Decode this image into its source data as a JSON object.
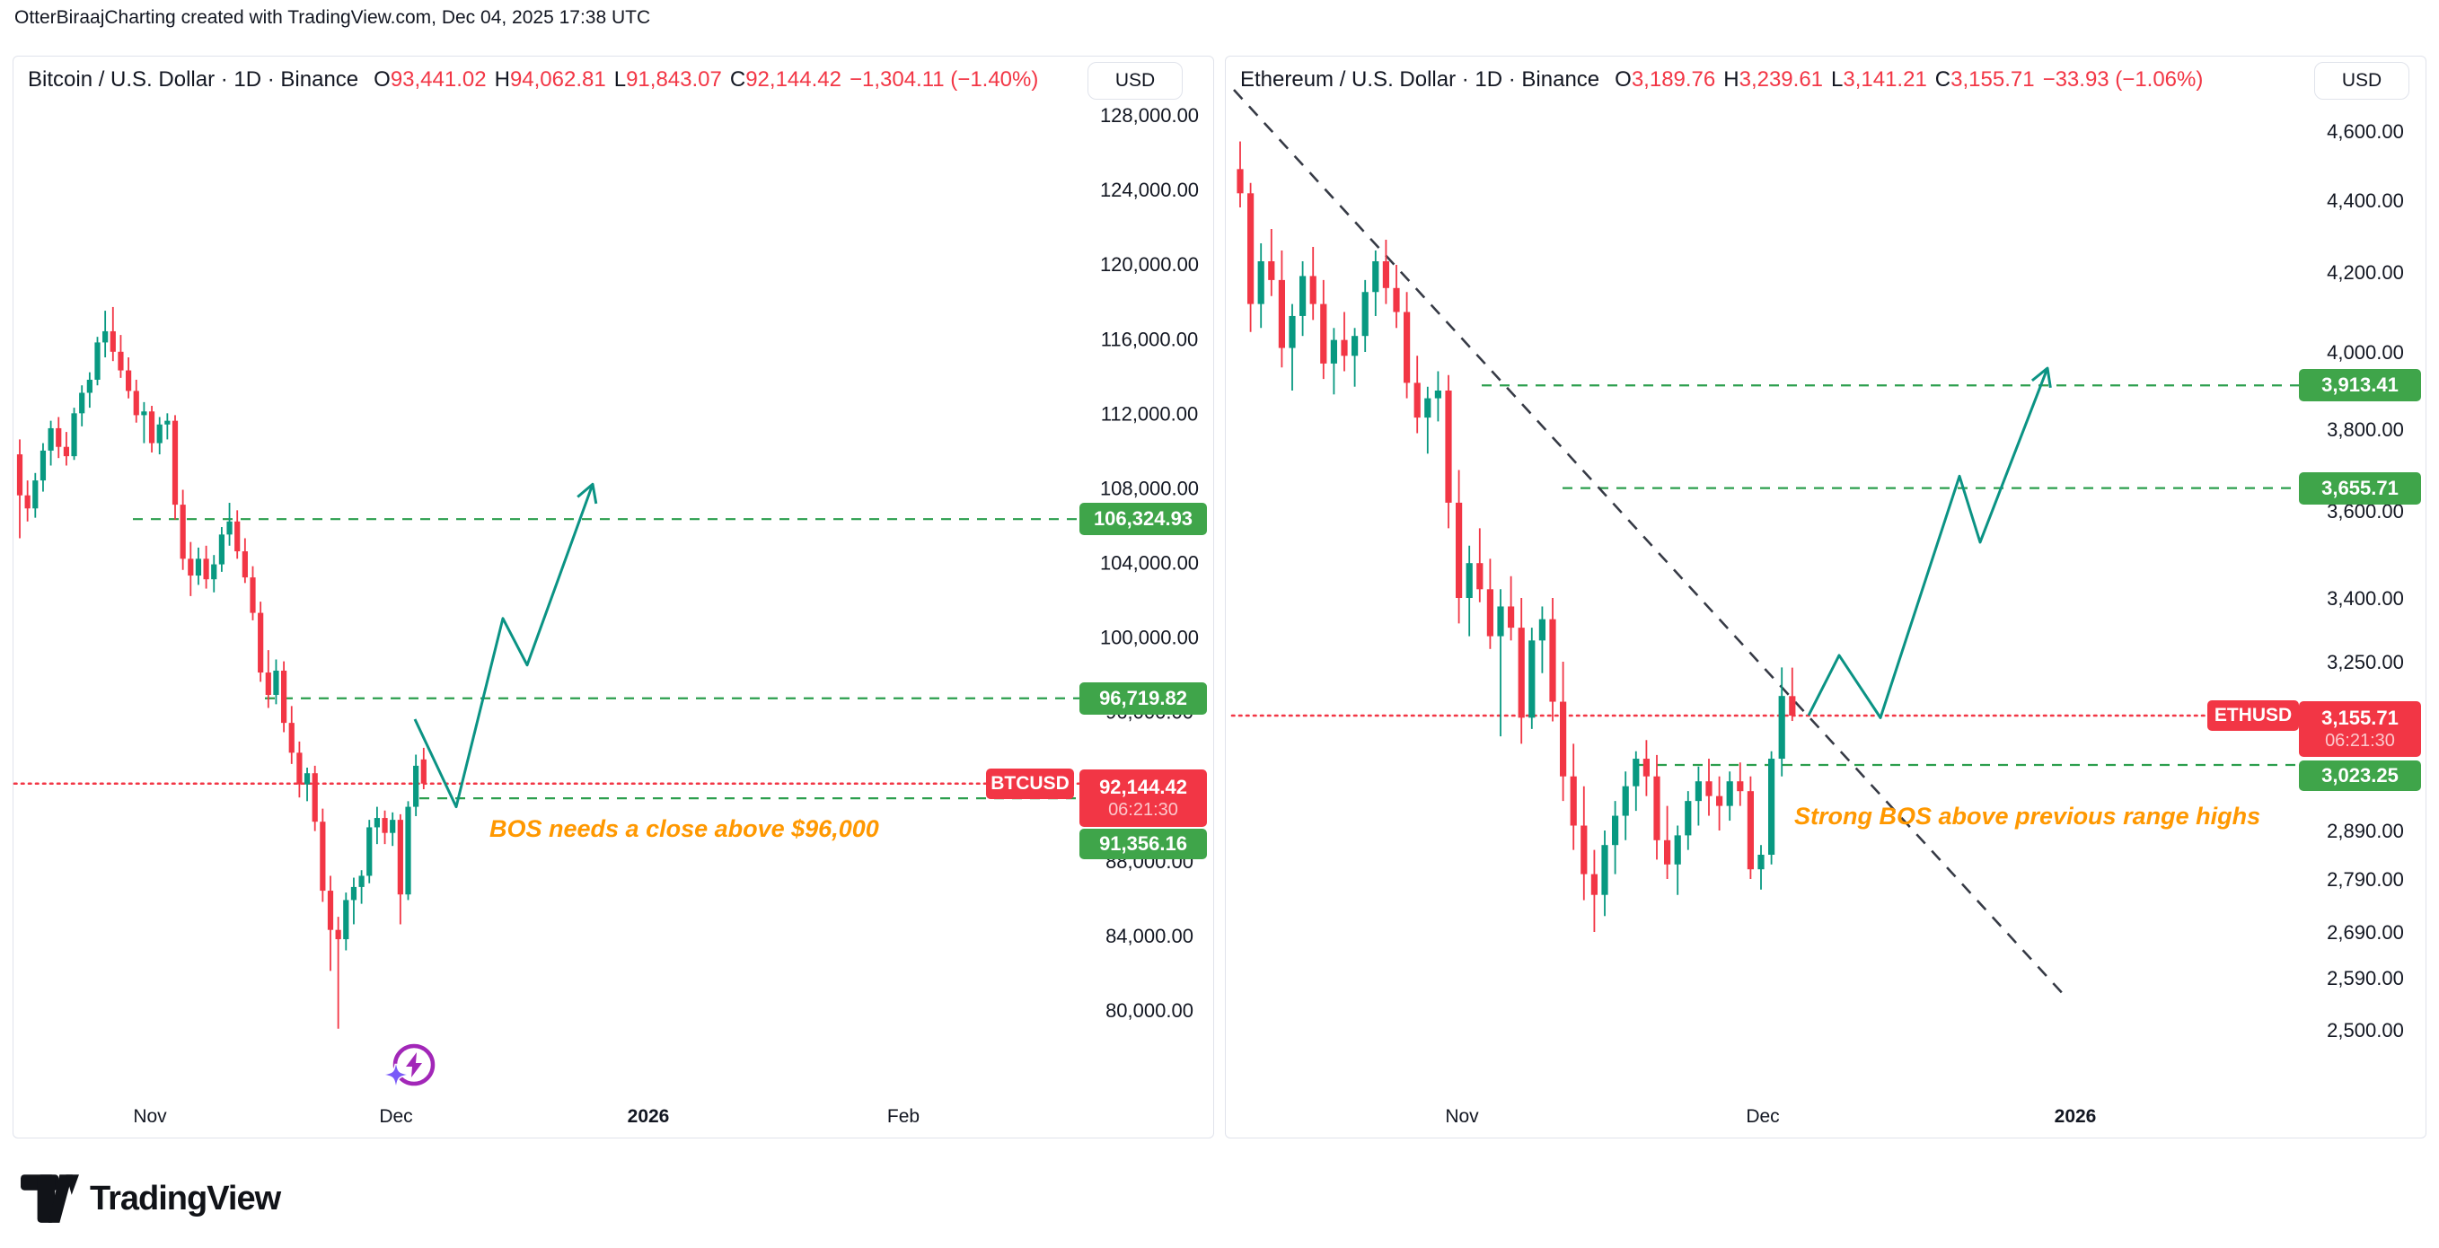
{
  "page": {
    "attribution": "OtterBiraajCharting created with TradingView.com, Dec 04, 2025 17:38 UTC"
  },
  "footer": {
    "brand": "TradingView"
  },
  "colors": {
    "candle_up": "#089981",
    "candle_down": "#f23645",
    "level_green": "#2b9e4d",
    "current_price_red": "#f23645",
    "projection_teal": "#0b9384",
    "trendline_dark": "#363a45",
    "annotation_orange": "#ff9800",
    "badge_green": "#3fa54a",
    "badge_red": "#f23645",
    "text_dark": "#131722",
    "border_gray": "#e0e3eb",
    "icon_purple": "#a227b8",
    "icon_violet": "#7a5af8"
  },
  "panels": [
    {
      "title": {
        "symbol": "Bitcoin / U.S. Dollar · 1D · Binance",
        "o_label": "O",
        "o": "93,441.02",
        "h_label": "H",
        "h": "94,062.81",
        "l_label": "L",
        "l": "91,843.07",
        "c_label": "C",
        "c": "92,144.42",
        "change": "−1,304.11 (−1.40%)"
      },
      "currency_button": "USD",
      "symbol_badge": "BTCUSD",
      "current_price_badge": {
        "price": "92,144.42",
        "countdown": "06:21:30"
      },
      "level_badges": [
        {
          "text": "106,324.93"
        },
        {
          "text": "96,719.82"
        },
        {
          "text": "91,356.16"
        }
      ],
      "annotation": "BOS needs a close above $96,000"
    },
    {
      "title": {
        "symbol": "Ethereum / U.S. Dollar · 1D · Binance",
        "o_label": "O",
        "o": "3,189.76",
        "h_label": "H",
        "h": "3,239.61",
        "l_label": "L",
        "l": "3,141.21",
        "c_label": "C",
        "c": "3,155.71",
        "change": "−33.93 (−1.06%)"
      },
      "currency_button": "USD",
      "symbol_badge": "ETHUSD",
      "current_price_badge": {
        "price": "3,155.71",
        "countdown": "06:21:30"
      },
      "level_badges": [
        {
          "text": "3,913.41"
        },
        {
          "text": "3,655.71"
        },
        {
          "text": "3,023.25"
        }
      ],
      "annotation": "Strong BOS above previous range highs"
    }
  ],
  "chart_data": [
    {
      "type": "candlestick",
      "title": "Bitcoin / U.S. Dollar",
      "symbol": "BTCUSD",
      "exchange": "Binance",
      "interval": "1D",
      "price_currency": "USD",
      "current": {
        "open": 93441.02,
        "high": 94062.81,
        "low": 91843.07,
        "close": 92144.42,
        "change": -1304.11,
        "change_pct": -1.4,
        "countdown": "06:21:30"
      },
      "y_axis": {
        "scale": "linear",
        "ticks": [
          128000,
          124000,
          120000,
          116000,
          112000,
          108000,
          104000,
          100000,
          96000,
          88000,
          84000,
          80000
        ],
        "tick_labels": [
          "128,000.00",
          "124,000.00",
          "120,000.00",
          "116,000.00",
          "112,000.00",
          "108,000.00",
          "104,000.00",
          "100,000.00",
          "96,000.00",
          "88,000.00",
          "84,000.00",
          "80,000.00"
        ]
      },
      "x_axis": {
        "ticks": [
          "Nov",
          "Dec",
          "2026",
          "Feb"
        ]
      },
      "levels": [
        {
          "price": 106324.93,
          "label": "106,324.93",
          "style": "dashed",
          "color": "green"
        },
        {
          "price": 96719.82,
          "label": "96,719.82",
          "style": "dashed",
          "color": "green"
        },
        {
          "price": 91356.16,
          "label": "91,356.16",
          "style": "dashed",
          "color": "green"
        },
        {
          "price": 92144.42,
          "label": "92,144.42",
          "style": "dotted",
          "color": "red",
          "role": "last-price"
        }
      ],
      "projection": {
        "shape": "zigzag-arrow",
        "direction": "up",
        "prices": [
          95600,
          90900,
          101000,
          98500,
          108200
        ]
      },
      "annotation": "BOS needs a close above $96,000",
      "candles": [
        [
          109800,
          110600,
          105300,
          107600
        ],
        [
          107600,
          108400,
          106200,
          106900
        ],
        [
          106900,
          108800,
          106400,
          108400
        ],
        [
          108400,
          110400,
          107800,
          110000
        ],
        [
          110000,
          111600,
          109200,
          111200
        ],
        [
          111200,
          111800,
          109600,
          110200
        ],
        [
          110200,
          111000,
          109200,
          109700
        ],
        [
          109700,
          112300,
          109500,
          112000
        ],
        [
          112000,
          113500,
          111300,
          113100
        ],
        [
          113100,
          114200,
          112300,
          113800
        ],
        [
          113800,
          116100,
          113500,
          115800
        ],
        [
          115800,
          117500,
          115000,
          116400
        ],
        [
          116400,
          117700,
          114800,
          115300
        ],
        [
          115300,
          116200,
          113900,
          114300
        ],
        [
          114300,
          115000,
          112800,
          113200
        ],
        [
          113200,
          113800,
          111500,
          111900
        ],
        [
          111900,
          112600,
          110400,
          112100
        ],
        [
          112100,
          112400,
          109900,
          110400
        ],
        [
          110400,
          111800,
          109800,
          111400
        ],
        [
          111400,
          112000,
          110600,
          111600
        ],
        [
          111600,
          111900,
          106300,
          107100
        ],
        [
          107100,
          107900,
          103600,
          104200
        ],
        [
          104200,
          105100,
          102200,
          103300
        ],
        [
          103300,
          104800,
          102800,
          104200
        ],
        [
          104200,
          104900,
          102600,
          103100
        ],
        [
          103100,
          104400,
          102400,
          103900
        ],
        [
          103900,
          105900,
          103500,
          105500
        ],
        [
          105500,
          107200,
          104900,
          106200
        ],
        [
          106200,
          106800,
          104200,
          104600
        ],
        [
          104600,
          105300,
          102900,
          103200
        ],
        [
          103200,
          103800,
          100900,
          101300
        ],
        [
          101300,
          101900,
          97600,
          98100
        ],
        [
          98100,
          99300,
          96200,
          96900
        ],
        [
          96900,
          98800,
          96400,
          98200
        ],
        [
          98200,
          98700,
          94900,
          95400
        ],
        [
          95400,
          96300,
          93200,
          93800
        ],
        [
          93800,
          94400,
          91400,
          92100
        ],
        [
          92100,
          93000,
          91200,
          92700
        ],
        [
          92700,
          93100,
          89600,
          90100
        ],
        [
          90100,
          90800,
          85800,
          86400
        ],
        [
          86400,
          87200,
          82100,
          84300
        ],
        [
          84300,
          85000,
          79000,
          83800
        ],
        [
          83800,
          86300,
          83200,
          85900
        ],
        [
          85900,
          87100,
          84600,
          86600
        ],
        [
          86600,
          87500,
          85700,
          87200
        ],
        [
          87200,
          90200,
          86800,
          89800
        ],
        [
          89800,
          90900,
          88900,
          90300
        ],
        [
          90300,
          90700,
          88900,
          89500
        ],
        [
          89500,
          90600,
          88800,
          90200
        ],
        [
          90200,
          90500,
          84600,
          86200
        ],
        [
          86200,
          91200,
          85900,
          90900
        ],
        [
          90900,
          93700,
          90400,
          93100
        ],
        [
          93441,
          94062,
          91843,
          92144
        ]
      ]
    },
    {
      "type": "candlestick",
      "title": "Ethereum / U.S. Dollar",
      "symbol": "ETHUSD",
      "exchange": "Binance",
      "interval": "1D",
      "price_currency": "USD",
      "current": {
        "open": 3189.76,
        "high": 3239.61,
        "low": 3141.21,
        "close": 3155.71,
        "change": -33.93,
        "change_pct": -1.06,
        "countdown": "06:21:30"
      },
      "y_axis": {
        "scale": "log",
        "ticks": [
          4600,
          4400,
          4200,
          4000,
          3800,
          3600,
          3400,
          3250,
          2890,
          2790,
          2690,
          2590,
          2500
        ],
        "tick_labels": [
          "4,600.00",
          "4,400.00",
          "4,200.00",
          "4,000.00",
          "3,800.00",
          "3,600.00",
          "3,400.00",
          "3,250.00",
          "2,890.00",
          "2,790.00",
          "2,690.00",
          "2,590.00",
          "2,500.00"
        ]
      },
      "x_axis": {
        "ticks": [
          "Nov",
          "Dec",
          "2026"
        ]
      },
      "levels": [
        {
          "price": 3913.41,
          "label": "3,913.41",
          "style": "dashed",
          "color": "green"
        },
        {
          "price": 3655.71,
          "label": "3,655.71",
          "style": "dashed",
          "color": "green"
        },
        {
          "price": 3023.25,
          "label": "3,023.25",
          "style": "dashed",
          "color": "green"
        },
        {
          "price": 3155.71,
          "label": "3,155.71",
          "style": "dotted",
          "color": "red",
          "role": "last-price"
        }
      ],
      "trendline": {
        "style": "dashed",
        "color": "black",
        "direction": "down"
      },
      "projection": {
        "shape": "zigzag-arrow",
        "direction": "up",
        "prices": [
          3156,
          3265,
          3150,
          3685,
          3528,
          3958
        ]
      },
      "annotation": "Strong BOS above previous range highs",
      "candles": [
        [
          4490,
          4570,
          4380,
          4420
        ],
        [
          4420,
          4450,
          4050,
          4120
        ],
        [
          4120,
          4280,
          4060,
          4230
        ],
        [
          4230,
          4320,
          4140,
          4180
        ],
        [
          4180,
          4260,
          3960,
          4010
        ],
        [
          4010,
          4120,
          3900,
          4090
        ],
        [
          4090,
          4230,
          4040,
          4190
        ],
        [
          4190,
          4270,
          4080,
          4120
        ],
        [
          4120,
          4180,
          3930,
          3970
        ],
        [
          3970,
          4060,
          3890,
          4030
        ],
        [
          4030,
          4100,
          3950,
          3990
        ],
        [
          3990,
          4060,
          3910,
          4040
        ],
        [
          4040,
          4180,
          4000,
          4150
        ],
        [
          4150,
          4260,
          4090,
          4230
        ],
        [
          4230,
          4290,
          4120,
          4160
        ],
        [
          4160,
          4220,
          4060,
          4100
        ],
        [
          4100,
          4150,
          3880,
          3920
        ],
        [
          3920,
          3990,
          3790,
          3830
        ],
        [
          3830,
          3910,
          3740,
          3880
        ],
        [
          3880,
          3950,
          3820,
          3900
        ],
        [
          3900,
          3940,
          3560,
          3620
        ],
        [
          3620,
          3700,
          3340,
          3400
        ],
        [
          3400,
          3520,
          3310,
          3480
        ],
        [
          3480,
          3560,
          3390,
          3420
        ],
        [
          3420,
          3490,
          3280,
          3310
        ],
        [
          3310,
          3420,
          3100,
          3380
        ],
        [
          3380,
          3450,
          3300,
          3330
        ],
        [
          3330,
          3400,
          3080,
          3150
        ],
        [
          3150,
          3330,
          3120,
          3300
        ],
        [
          3300,
          3380,
          3230,
          3350
        ],
        [
          3350,
          3400,
          3140,
          3180
        ],
        [
          3180,
          3250,
          2950,
          3000
        ],
        [
          3000,
          3080,
          2850,
          2900
        ],
        [
          2900,
          2980,
          2750,
          2800
        ],
        [
          2800,
          2850,
          2690,
          2760
        ],
        [
          2760,
          2890,
          2720,
          2860
        ],
        [
          2860,
          2950,
          2800,
          2920
        ],
        [
          2920,
          3010,
          2870,
          2980
        ],
        [
          2980,
          3060,
          2930,
          3040
        ],
        [
          3040,
          3090,
          2960,
          3000
        ],
        [
          3000,
          3050,
          2830,
          2870
        ],
        [
          2870,
          2940,
          2790,
          2820
        ],
        [
          2820,
          2900,
          2760,
          2880
        ],
        [
          2880,
          2970,
          2850,
          2950
        ],
        [
          2950,
          3020,
          2900,
          2990
        ],
        [
          2990,
          3040,
          2920,
          2960
        ],
        [
          2960,
          3000,
          2890,
          2940
        ],
        [
          2940,
          3010,
          2910,
          2990
        ],
        [
          2990,
          3030,
          2940,
          2970
        ],
        [
          2970,
          3000,
          2790,
          2810
        ],
        [
          2810,
          2860,
          2770,
          2840
        ],
        [
          2840,
          3060,
          2820,
          3040
        ],
        [
          3040,
          3240,
          3000,
          3190
        ],
        [
          3189.76,
          3239.61,
          3141.21,
          3155.71
        ]
      ]
    }
  ]
}
